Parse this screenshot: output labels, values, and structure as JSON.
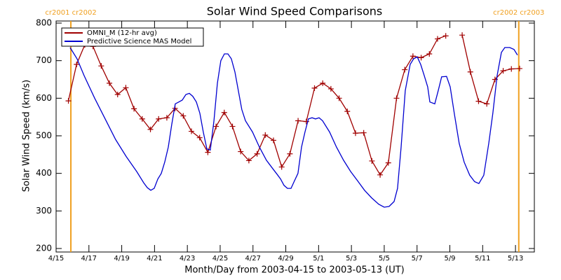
{
  "chart_data": {
    "type": "line",
    "title": "Solar Wind Speed Comparisons",
    "x_label": "Month/Day from 2003-04-15 to 2003-05-13 (UT)",
    "y_label": "Solar Wind Speed (km/s)",
    "xlim": [
      0,
      29.15
    ],
    "ylim": [
      200,
      800
    ],
    "xticks": [
      {
        "value": 0,
        "label": "4/15"
      },
      {
        "value": 2,
        "label": "4/17"
      },
      {
        "value": 4,
        "label": "4/19"
      },
      {
        "value": 6,
        "label": "4/21"
      },
      {
        "value": 8,
        "label": "4/23"
      },
      {
        "value": 10,
        "label": "4/25"
      },
      {
        "value": 12,
        "label": "4/27"
      },
      {
        "value": 14,
        "label": "4/29"
      },
      {
        "value": 16,
        "label": "5/1"
      },
      {
        "value": 18,
        "label": "5/3"
      },
      {
        "value": 20,
        "label": "5/5"
      },
      {
        "value": 22,
        "label": "5/7"
      },
      {
        "value": 24,
        "label": "5/9"
      },
      {
        "value": 26,
        "label": "5/11"
      },
      {
        "value": 28,
        "label": "5/13"
      }
    ],
    "yticks": [
      200,
      300,
      400,
      500,
      600,
      700,
      800
    ],
    "legend_position": "upper left",
    "annotations": [
      {
        "x": 0.9,
        "label": "cr2001 cr2002",
        "color": "#f0a020"
      },
      {
        "x": 28.2,
        "label": "cr2002 cr2003",
        "color": "#f0a020"
      }
    ],
    "series": [
      {
        "name": "OMNI_M (12-hr avg)",
        "color": "#a00000",
        "marker": "plus",
        "x": [
          0.75,
          1.25,
          1.75,
          2.25,
          2.75,
          3.25,
          3.75,
          4.25,
          4.75,
          5.25,
          5.75,
          6.25,
          6.75,
          7.25,
          7.75,
          8.25,
          8.75,
          9.25,
          9.75,
          10.25,
          10.75,
          11.25,
          11.75,
          12.25,
          12.75,
          13.25,
          13.75,
          14.25,
          14.75,
          15.25,
          15.75,
          16.25,
          16.75,
          17.25,
          17.75,
          18.25,
          18.75,
          19.25,
          19.75,
          20.25,
          20.75,
          21.25,
          21.75,
          22.25,
          22.75,
          23.25,
          23.75,
          24.25,
          24.75,
          25.25,
          25.75,
          26.25,
          26.75,
          27.25,
          27.75,
          28.25
        ],
        "values": [
          593,
          690,
          742,
          738,
          686,
          640,
          610,
          628,
          572,
          545,
          517,
          545,
          548,
          573,
          553,
          512,
          495,
          456,
          525,
          562,
          525,
          458,
          434,
          452,
          502,
          488,
          417,
          452,
          540,
          538,
          627,
          640,
          625,
          600,
          565,
          507,
          508,
          433,
          396,
          428,
          600,
          676,
          712,
          708,
          718,
          758,
          766,
          null,
          768,
          670,
          592,
          585,
          650,
          673,
          678,
          679
        ]
      },
      {
        "name": "Predictive Science MAS Model",
        "color": "#0000d0",
        "marker": "none",
        "x": [
          0.85,
          1.28,
          1.71,
          2.35,
          2.99,
          3.63,
          4.27,
          4.91,
          5.34,
          5.56,
          5.77,
          5.98,
          6.2,
          6.41,
          6.62,
          6.84,
          7.05,
          7.26,
          7.48,
          7.69,
          7.91,
          8.12,
          8.33,
          8.55,
          8.76,
          8.97,
          9.19,
          9.4,
          9.62,
          9.83,
          10.04,
          10.26,
          10.47,
          10.68,
          10.9,
          11.11,
          11.32,
          11.54,
          11.97,
          12.39,
          12.82,
          13.25,
          13.46,
          13.68,
          13.89,
          14.1,
          14.32,
          14.53,
          14.74,
          14.96,
          15.17,
          15.38,
          15.6,
          15.81,
          16.03,
          16.24,
          16.67,
          17.09,
          17.52,
          17.95,
          18.38,
          18.8,
          19.23,
          19.66,
          20,
          20.3,
          20.6,
          20.81,
          21.03,
          21.28,
          21.58,
          21.79,
          22.01,
          22.22,
          22.44,
          22.65,
          22.78,
          23.08,
          23.29,
          23.5,
          23.8,
          24.02,
          24.27,
          24.57,
          24.87,
          25.21,
          25.51,
          25.77,
          26.07,
          26.37,
          26.62,
          26.88,
          27.14,
          27.35,
          27.65,
          27.91,
          28.12
        ],
        "values": [
          735,
          705,
          660,
          600,
          545,
          490,
          445,
          405,
          375,
          362,
          355,
          360,
          385,
          400,
          430,
          470,
          530,
          585,
          590,
          595,
          610,
          613,
          605,
          590,
          560,
          510,
          465,
          462,
          540,
          640,
          700,
          718,
          718,
          705,
          670,
          620,
          570,
          540,
          510,
          470,
          435,
          410,
          398,
          385,
          368,
          360,
          360,
          380,
          400,
          470,
          510,
          545,
          548,
          545,
          548,
          540,
          510,
          470,
          435,
          405,
          380,
          355,
          335,
          318,
          310,
          312,
          325,
          360,
          470,
          620,
          690,
          705,
          710,
          690,
          660,
          630,
          590,
          585,
          620,
          657,
          658,
          630,
          560,
          480,
          430,
          395,
          378,
          373,
          395,
          480,
          560,
          660,
          722,
          735,
          735,
          730,
          715
        ]
      }
    ]
  }
}
